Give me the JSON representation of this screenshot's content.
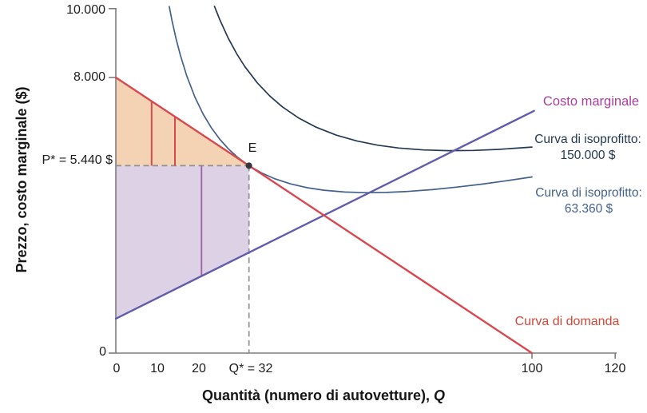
{
  "figure": {
    "ylabel": "Prezzo, costo marginale ($)",
    "xlabel_main": "Quantità (numero di autovetture), ",
    "xlabel_var": "Q"
  },
  "annotations": {
    "point_e": "E",
    "marginal_cost_label": "Costo marginale",
    "isoprofit_150_line1": "Curva di isoprofitto:",
    "isoprofit_150_line2": "150.000 $",
    "isoprofit_63_line1": "Curva di isoprofitto:",
    "isoprofit_63_line2": "63.360 $",
    "demand_label": "Curva di domanda"
  },
  "colors": {
    "demand": "#d7494f",
    "demand_label": "#cf4838",
    "marginal_cost": "#615cab",
    "marginal_cost_label": "#a83f9e",
    "isoprofit_150000": "#243a52",
    "isoprofit_63360": "#44618c",
    "region_above_price": "#f4d2b4",
    "region_below_price": "#ddd2e5",
    "axis": "#7d7d7d",
    "tick_text": "#1c1c1c",
    "dashed_guide": "#909090",
    "unit_line_red": "#d7494f",
    "unit_line_purple": "#a45ba8",
    "point": "#35353d"
  },
  "chart_data": {
    "type": "line",
    "title": "",
    "xlabel": "Quantità (numero di autovetture), Q",
    "ylabel": "Prezzo, costo marginale ($)",
    "xlim": [
      0,
      120
    ],
    "ylim": [
      0,
      10000
    ],
    "grid": false,
    "legend_position": "right-annotations",
    "x_ticks": [
      {
        "value": 0,
        "label": "0",
        "tick": false
      },
      {
        "value": 10,
        "label": "10",
        "tick": false
      },
      {
        "value": 20,
        "label": "20",
        "tick": false
      },
      {
        "value": 32,
        "label": "Q* = 32",
        "tick": false
      },
      {
        "value": 100,
        "label": "100",
        "tick": true
      },
      {
        "value": 120,
        "label": "120",
        "tick": true
      }
    ],
    "y_ticks": [
      {
        "value": 0,
        "label": "0",
        "tick": true
      },
      {
        "value": 5440,
        "label": "P* = 5.440 $",
        "tick": false
      },
      {
        "value": 8000,
        "label": "8.000",
        "tick": true
      },
      {
        "value": 10000,
        "label": "10.000",
        "tick": true
      }
    ],
    "equilibrium": {
      "label": "E",
      "Q": 32,
      "P": 5440
    },
    "series": [
      {
        "id": "isoprofit-150000",
        "label": "Curva di isoprofitto: 150.000 $",
        "color": "isoprofit_150000",
        "width": 1.7,
        "points": [
          [
            23.7,
            10065
          ],
          [
            25,
            9670
          ],
          [
            27,
            9143
          ],
          [
            29,
            8698
          ],
          [
            31,
            8317
          ],
          [
            34,
            7844
          ],
          [
            37,
            7461
          ],
          [
            40,
            7150
          ],
          [
            44,
            6820
          ],
          [
            48,
            6565
          ],
          [
            53,
            6326
          ],
          [
            58,
            6154
          ],
          [
            63,
            6033
          ],
          [
            68,
            5952
          ],
          [
            74,
            5896
          ],
          [
            80,
            5875
          ],
          [
            86,
            5882
          ],
          [
            92,
            5912
          ],
          [
            100,
            5980
          ]
        ]
      },
      {
        "id": "isoprofit-63360",
        "label": "Curva di isoprofitto: 63.360 $",
        "color": "isoprofit_63360",
        "width": 1.7,
        "points": [
          [
            12.85,
            10060
          ],
          [
            13.5,
            9654
          ],
          [
            14.5,
            9115
          ],
          [
            15.5,
            8649
          ],
          [
            17,
            8060
          ],
          [
            19,
            7431
          ],
          [
            21,
            6933
          ],
          [
            23,
            6532
          ],
          [
            25,
            6204
          ],
          [
            27,
            5934
          ],
          [
            29,
            5710
          ],
          [
            32,
            5440
          ],
          [
            35,
            5232
          ],
          [
            38,
            5070
          ],
          [
            42,
            4911
          ],
          [
            46,
            4801
          ],
          [
            50,
            4727
          ],
          [
            55,
            4675
          ],
          [
            60,
            4656
          ],
          [
            65,
            4663
          ],
          [
            70,
            4691
          ],
          [
            76,
            4745
          ],
          [
            82,
            4818
          ],
          [
            88,
            4905
          ],
          [
            94,
            5005
          ],
          [
            100,
            5114
          ]
        ]
      },
      {
        "id": "marginal-cost",
        "label": "Costo marginale",
        "color": "marginal_cost",
        "width": 2.4,
        "points": [
          [
            0,
            1000
          ],
          [
            100.5,
            7030
          ]
        ]
      },
      {
        "id": "demand",
        "label": "Curva di domanda",
        "color": "demand",
        "width": 2.4,
        "points": [
          [
            0,
            8000
          ],
          [
            100,
            0
          ]
        ]
      }
    ],
    "regions": [
      {
        "id": "above-price",
        "color": "region_above_price",
        "points": [
          [
            0,
            8000
          ],
          [
            32,
            5440
          ],
          [
            0,
            5440
          ]
        ]
      },
      {
        "id": "below-price",
        "color": "region_below_price",
        "points": [
          [
            0,
            5440
          ],
          [
            32,
            5440
          ],
          [
            32,
            2920
          ],
          [
            0,
            1000
          ]
        ]
      }
    ],
    "guide_segments": [
      {
        "id": "red-unit-line-1",
        "color": "unit_line_red",
        "width": 2.0,
        "from": [
          8.6,
          7312
        ],
        "to": [
          8.6,
          5440
        ]
      },
      {
        "id": "red-unit-line-2",
        "color": "unit_line_red",
        "width": 2.0,
        "from": [
          14.2,
          6864
        ],
        "to": [
          14.2,
          5440
        ]
      },
      {
        "id": "purple-unit-line",
        "color": "unit_line_purple",
        "width": 1.8,
        "from": [
          20.6,
          5440
        ],
        "to": [
          20.6,
          2236
        ]
      }
    ],
    "dashed_guides": [
      {
        "id": "price-dash",
        "from": [
          0,
          5440
        ],
        "to": [
          32,
          5440
        ]
      },
      {
        "id": "quantity-dash",
        "from": [
          32,
          5440
        ],
        "to": [
          32,
          0
        ]
      }
    ]
  }
}
